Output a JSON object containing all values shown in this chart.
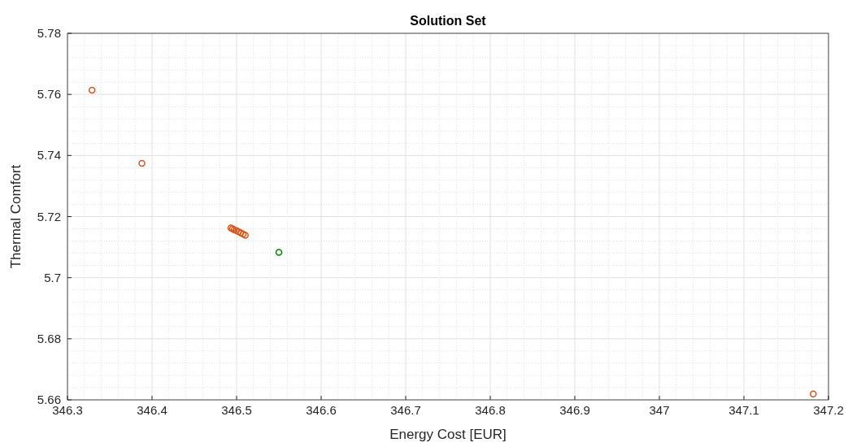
{
  "chart_data": {
    "type": "scatter",
    "title": "Solution Set",
    "xlabel": "Energy Cost [EUR]",
    "ylabel": "Thermal Comfort",
    "xlim": [
      346.3,
      347.2
    ],
    "xticks": [
      346.3,
      346.4,
      346.5,
      346.6,
      346.7,
      346.8,
      346.9,
      347,
      347.1,
      347.2
    ],
    "ylim": [
      5.66,
      5.78
    ],
    "yticks": [
      5.66,
      5.68,
      5.7,
      5.72,
      5.74,
      5.76,
      5.78
    ],
    "grid": true,
    "marker": "circle",
    "series": [
      {
        "color": "#d95319",
        "x": [
          346.329,
          346.388,
          346.4933,
          346.4952,
          346.4971,
          346.4997,
          346.5022,
          346.5048,
          346.5077,
          346.5103,
          347.182
        ],
        "values": [
          5.7614,
          5.7374,
          5.7163,
          5.716,
          5.7157,
          5.7154,
          5.7151,
          5.7147,
          5.7143,
          5.7139,
          5.6619
        ]
      },
      {
        "color": "#008000",
        "x": [
          346.55
        ],
        "values": [
          5.7083
        ]
      }
    ]
  }
}
